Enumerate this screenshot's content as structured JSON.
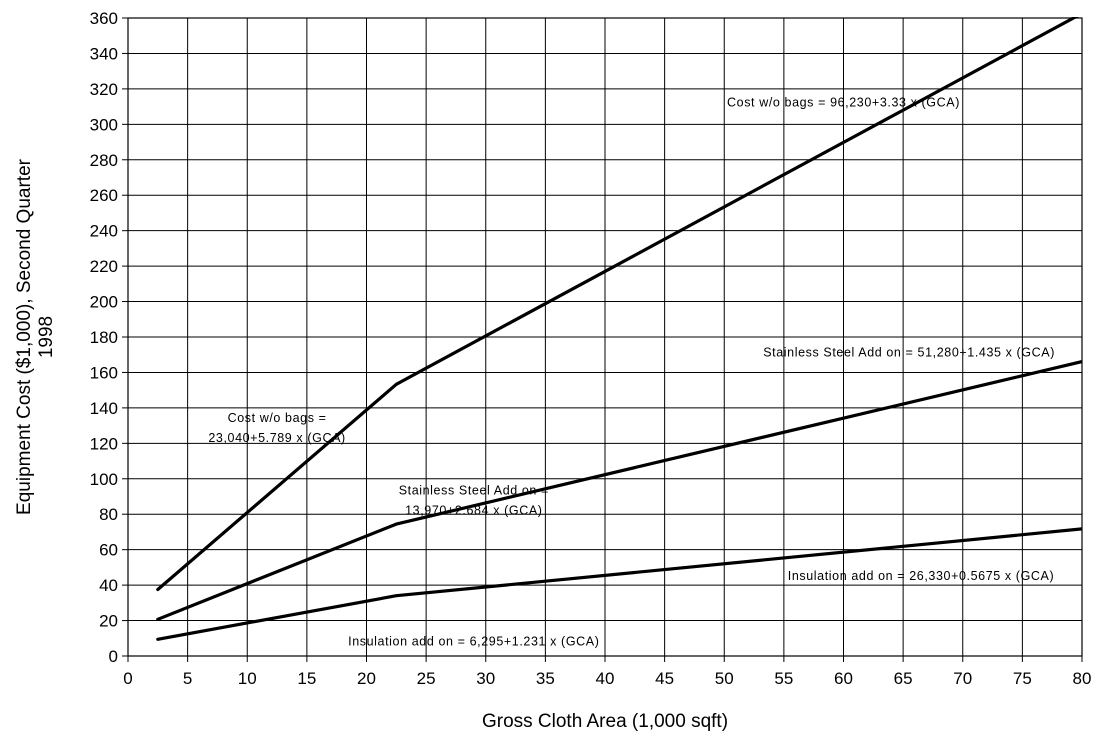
{
  "chart_data": {
    "type": "line",
    "title": "",
    "xlabel": "Gross Cloth Area (1,000 sqft)",
    "ylabel_lines": [
      "Equipment Cost ($1,000), Second Quarter",
      "1998"
    ],
    "xlim": [
      0,
      80
    ],
    "ylim": [
      0,
      360
    ],
    "xticks": [
      0,
      5,
      10,
      15,
      20,
      25,
      30,
      35,
      40,
      45,
      50,
      55,
      60,
      65,
      70,
      75,
      80
    ],
    "yticks": [
      0,
      20,
      40,
      60,
      80,
      100,
      120,
      140,
      160,
      180,
      200,
      220,
      240,
      260,
      280,
      300,
      320,
      340,
      360
    ],
    "grid": true,
    "legend": "none",
    "series": [
      {
        "points": [
          [
            2.5,
            37.5
          ],
          [
            22.5,
            153.3
          ],
          [
            80,
            362.6
          ]
        ]
      },
      {
        "points": [
          [
            2.5,
            20.7
          ],
          [
            22.5,
            74.4
          ],
          [
            80,
            166.1
          ]
        ]
      },
      {
        "points": [
          [
            2.5,
            9.4
          ],
          [
            22.5,
            34.0
          ],
          [
            80,
            71.7
          ]
        ]
      }
    ],
    "annotations": [
      {
        "lines": [
          "Cost w/o bags = 96,230+3.33 x (GCA)"
        ],
        "x": 60,
        "y": 310,
        "anchor": "middle"
      },
      {
        "lines": [
          "Cost w/o bags =",
          "23,040+5.789 x (GCA)"
        ],
        "x": 12.5,
        "y": 132,
        "anchor": "middle"
      },
      {
        "lines": [
          "Stainless Steel Add on = 51,280+1.435 x (GCA)"
        ],
        "x": 65.5,
        "y": 169,
        "anchor": "middle"
      },
      {
        "lines": [
          "Stainless Steel Add on =",
          "13,970+2.684 x (GCA)"
        ],
        "x": 29,
        "y": 91,
        "anchor": "middle"
      },
      {
        "lines": [
          "Insulation add on = 26,330+0.5675 x (GCA)"
        ],
        "x": 66.5,
        "y": 43,
        "anchor": "middle"
      },
      {
        "lines": [
          "Insulation add on = 6,295+1.231 x (GCA)"
        ],
        "x": 29,
        "y": 6,
        "anchor": "middle"
      }
    ]
  }
}
